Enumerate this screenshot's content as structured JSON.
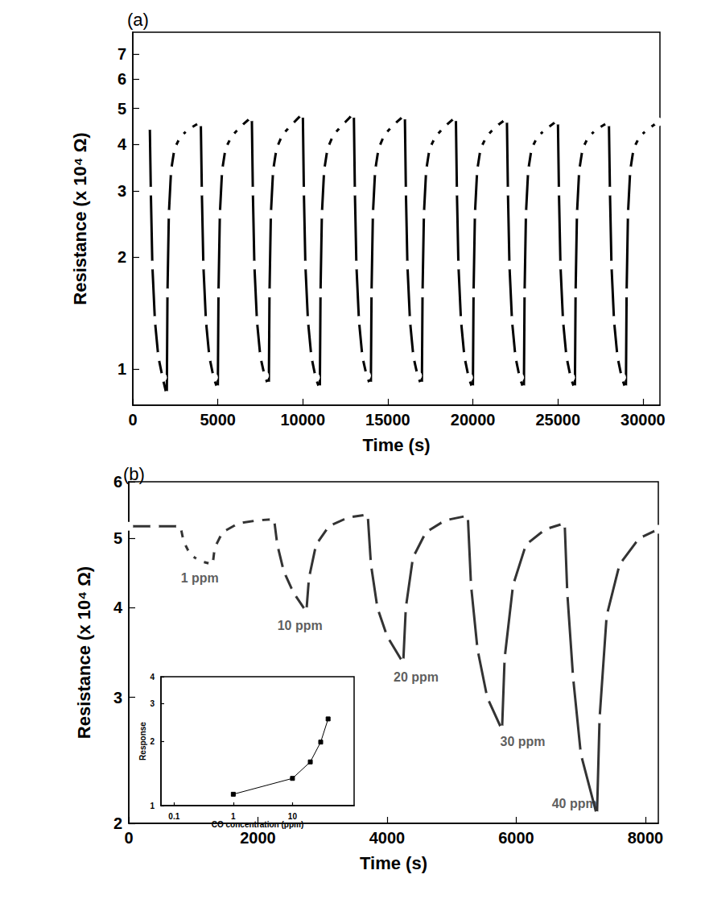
{
  "chart_data": [
    {
      "type": "line",
      "title": "(a)",
      "xlabel": "Time (s)",
      "ylabel": "Resistance (x 10⁴ Ω)",
      "log": "y",
      "grid": false,
      "marker": "open_circle",
      "line_style": "solid",
      "color": "#000000",
      "xlim": [
        0,
        31000
      ],
      "xticks": [
        0,
        5000,
        10000,
        15000,
        20000,
        25000,
        30000
      ],
      "ylim": [
        0.8,
        8
      ],
      "yticks": [
        1,
        2,
        3,
        4,
        5,
        6,
        7
      ],
      "x": [
        1000,
        1060,
        1150,
        1300,
        1500,
        1750,
        2000,
        2040,
        2120,
        2250,
        2450,
        2800,
        3300,
        4000,
        4060,
        4150,
        4300,
        4500,
        4750,
        5000,
        5040,
        5120,
        5250,
        5450,
        5800,
        6300,
        7000,
        7060,
        7150,
        7300,
        7500,
        7750,
        8000,
        8040,
        8120,
        8250,
        8450,
        8800,
        9300,
        10000,
        10060,
        10150,
        10300,
        10500,
        10750,
        11000,
        11040,
        11120,
        11250,
        11450,
        11800,
        12300,
        13000,
        13060,
        13150,
        13300,
        13500,
        13750,
        14000,
        14040,
        14120,
        14250,
        14450,
        14800,
        15300,
        16000,
        16060,
        16150,
        16300,
        16500,
        16750,
        17000,
        17040,
        17120,
        17250,
        17450,
        17800,
        18300,
        19000,
        19060,
        19150,
        19300,
        19500,
        19750,
        20000,
        20040,
        20120,
        20250,
        20450,
        20800,
        21300,
        22000,
        22060,
        22150,
        22300,
        22500,
        22750,
        23000,
        23040,
        23120,
        23250,
        23450,
        23800,
        24300,
        25000,
        25060,
        25150,
        25300,
        25500,
        25750,
        26000,
        26040,
        26120,
        26250,
        26450,
        26800,
        27300,
        28000,
        28060,
        28150,
        28300,
        28500,
        28750,
        29000,
        29040,
        29120,
        29250,
        29450,
        29800,
        30300,
        30900
      ],
      "values": [
        4.5,
        3.0,
        1.9,
        1.35,
        1.08,
        0.95,
        0.85,
        1.6,
        2.6,
        3.4,
        3.9,
        4.2,
        4.4,
        4.6,
        3.0,
        1.9,
        1.35,
        1.08,
        0.95,
        0.88,
        1.6,
        2.6,
        3.4,
        3.9,
        4.2,
        4.45,
        4.75,
        3.0,
        1.9,
        1.35,
        1.08,
        0.96,
        0.9,
        1.6,
        2.6,
        3.4,
        3.9,
        4.25,
        4.5,
        4.85,
        3.0,
        1.9,
        1.35,
        1.08,
        0.95,
        0.88,
        1.6,
        2.6,
        3.4,
        3.9,
        4.25,
        4.5,
        4.85,
        3.0,
        1.9,
        1.35,
        1.08,
        0.96,
        0.9,
        1.6,
        2.6,
        3.4,
        3.9,
        4.25,
        4.5,
        4.8,
        3.0,
        1.9,
        1.35,
        1.08,
        0.96,
        0.9,
        1.6,
        2.6,
        3.4,
        3.9,
        4.2,
        4.45,
        4.75,
        3.0,
        1.9,
        1.35,
        1.08,
        0.95,
        0.88,
        1.6,
        2.6,
        3.4,
        3.9,
        4.2,
        4.45,
        4.7,
        3.0,
        1.9,
        1.35,
        1.08,
        0.95,
        0.88,
        1.6,
        2.6,
        3.4,
        3.9,
        4.2,
        4.4,
        4.65,
        3.0,
        1.9,
        1.35,
        1.08,
        0.95,
        0.88,
        1.6,
        2.6,
        3.4,
        3.9,
        4.2,
        4.4,
        4.6,
        3.0,
        1.9,
        1.35,
        1.08,
        0.95,
        0.88,
        1.6,
        2.6,
        3.4,
        3.9,
        4.2,
        4.4,
        4.6
      ]
    },
    {
      "type": "line",
      "title": "(b)",
      "xlabel": "Time (s)",
      "ylabel": "Resistance (x 10⁴ Ω)",
      "log": "y",
      "grid": false,
      "marker": "open_circle",
      "line_style": "solid",
      "color": "#333333",
      "xlim": [
        0,
        8200
      ],
      "xticks": [
        0,
        2000,
        4000,
        6000,
        8000
      ],
      "ylim": [
        2,
        6
      ],
      "yticks": [
        2,
        3,
        4,
        5,
        6
      ],
      "x": [
        0,
        400,
        800,
        850,
        950,
        1100,
        1300,
        1330,
        1450,
        1700,
        2000,
        2250,
        2300,
        2400,
        2550,
        2750,
        2790,
        2900,
        3100,
        3400,
        3700,
        3750,
        3850,
        4000,
        4250,
        4290,
        4400,
        4600,
        4900,
        5250,
        5300,
        5400,
        5550,
        5780,
        5820,
        5950,
        6150,
        6450,
        6750,
        6790,
        6880,
        7000,
        7250,
        7290,
        7400,
        7600,
        7900,
        8200
      ],
      "values": [
        5.2,
        5.2,
        5.2,
        4.95,
        4.75,
        4.65,
        4.6,
        4.85,
        5.1,
        5.25,
        5.3,
        5.32,
        4.9,
        4.5,
        4.2,
        3.95,
        4.4,
        4.9,
        5.2,
        5.35,
        5.4,
        4.6,
        4.0,
        3.65,
        3.35,
        4.0,
        4.7,
        5.1,
        5.3,
        5.38,
        4.3,
        3.5,
        3.0,
        2.7,
        3.4,
        4.3,
        4.9,
        5.15,
        5.25,
        4.2,
        3.2,
        2.5,
        2.05,
        2.8,
        3.9,
        4.6,
        5.0,
        5.15
      ],
      "annotations": [
        {
          "text": "1 ppm",
          "x": 1100,
          "y": 4.4
        },
        {
          "text": "10 ppm",
          "x": 2650,
          "y": 3.78
        },
        {
          "text": "20 ppm",
          "x": 4450,
          "y": 3.2
        },
        {
          "text": "30 ppm",
          "x": 6100,
          "y": 2.6
        },
        {
          "text": "40 ppm",
          "x": 6900,
          "y": 2.13
        }
      ]
    },
    {
      "type": "line",
      "xlabel": "CO concentration (ppm)",
      "ylabel": "Response",
      "log": true,
      "grid": false,
      "marker": "square",
      "line_style": "solid",
      "color": "#000000",
      "xlim": [
        0.06,
        110
      ],
      "xticks": [
        0.1,
        1,
        10
      ],
      "ylim": [
        1,
        4
      ],
      "yticks": [
        1,
        2,
        3,
        4
      ],
      "x": [
        1,
        10,
        20,
        30,
        40
      ],
      "values": [
        1.13,
        1.34,
        1.6,
        1.98,
        2.54
      ]
    }
  ]
}
